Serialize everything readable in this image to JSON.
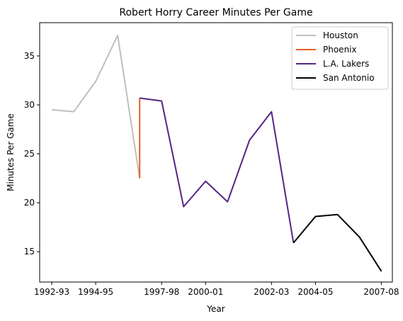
{
  "chart_data": {
    "type": "line",
    "title": "Robert Horry Career Minutes Per Game",
    "xlabel": "Year",
    "ylabel": "Minutes Per Game",
    "xlim": [
      -0.55,
      15.5
    ],
    "ylim": [
      11.9,
      38.4
    ],
    "x_tick_positions": [
      0,
      2,
      5,
      7,
      10,
      12,
      15
    ],
    "x_tick_labels": [
      "1992-93",
      "1994-95",
      "1997-98",
      "2000-01",
      "2002-03",
      "2004-05",
      "2007-08"
    ],
    "y_ticks": [
      15,
      20,
      25,
      30,
      35
    ],
    "grid": false,
    "legend_position": "top-right",
    "series": [
      {
        "name": "Houston",
        "color": "#bfbfbf",
        "x": [
          0,
          1,
          2,
          3,
          4
        ],
        "y": [
          29.5,
          29.3,
          32.4,
          37.1,
          22.5
        ]
      },
      {
        "name": "Phoenix",
        "color": "#e56020",
        "x": [
          4,
          4
        ],
        "y": [
          22.5,
          30.7
        ]
      },
      {
        "name": "L.A. Lakers",
        "color": "#552583",
        "x": [
          4,
          5,
          6,
          7,
          8,
          9,
          10,
          11
        ],
        "y": [
          30.7,
          30.4,
          19.6,
          22.2,
          20.1,
          26.4,
          29.3,
          15.9
        ]
      },
      {
        "name": "San Antonio",
        "color": "#000000",
        "x": [
          11,
          12,
          13,
          14,
          15
        ],
        "y": [
          15.9,
          18.6,
          18.8,
          16.5,
          13.0
        ]
      }
    ]
  }
}
